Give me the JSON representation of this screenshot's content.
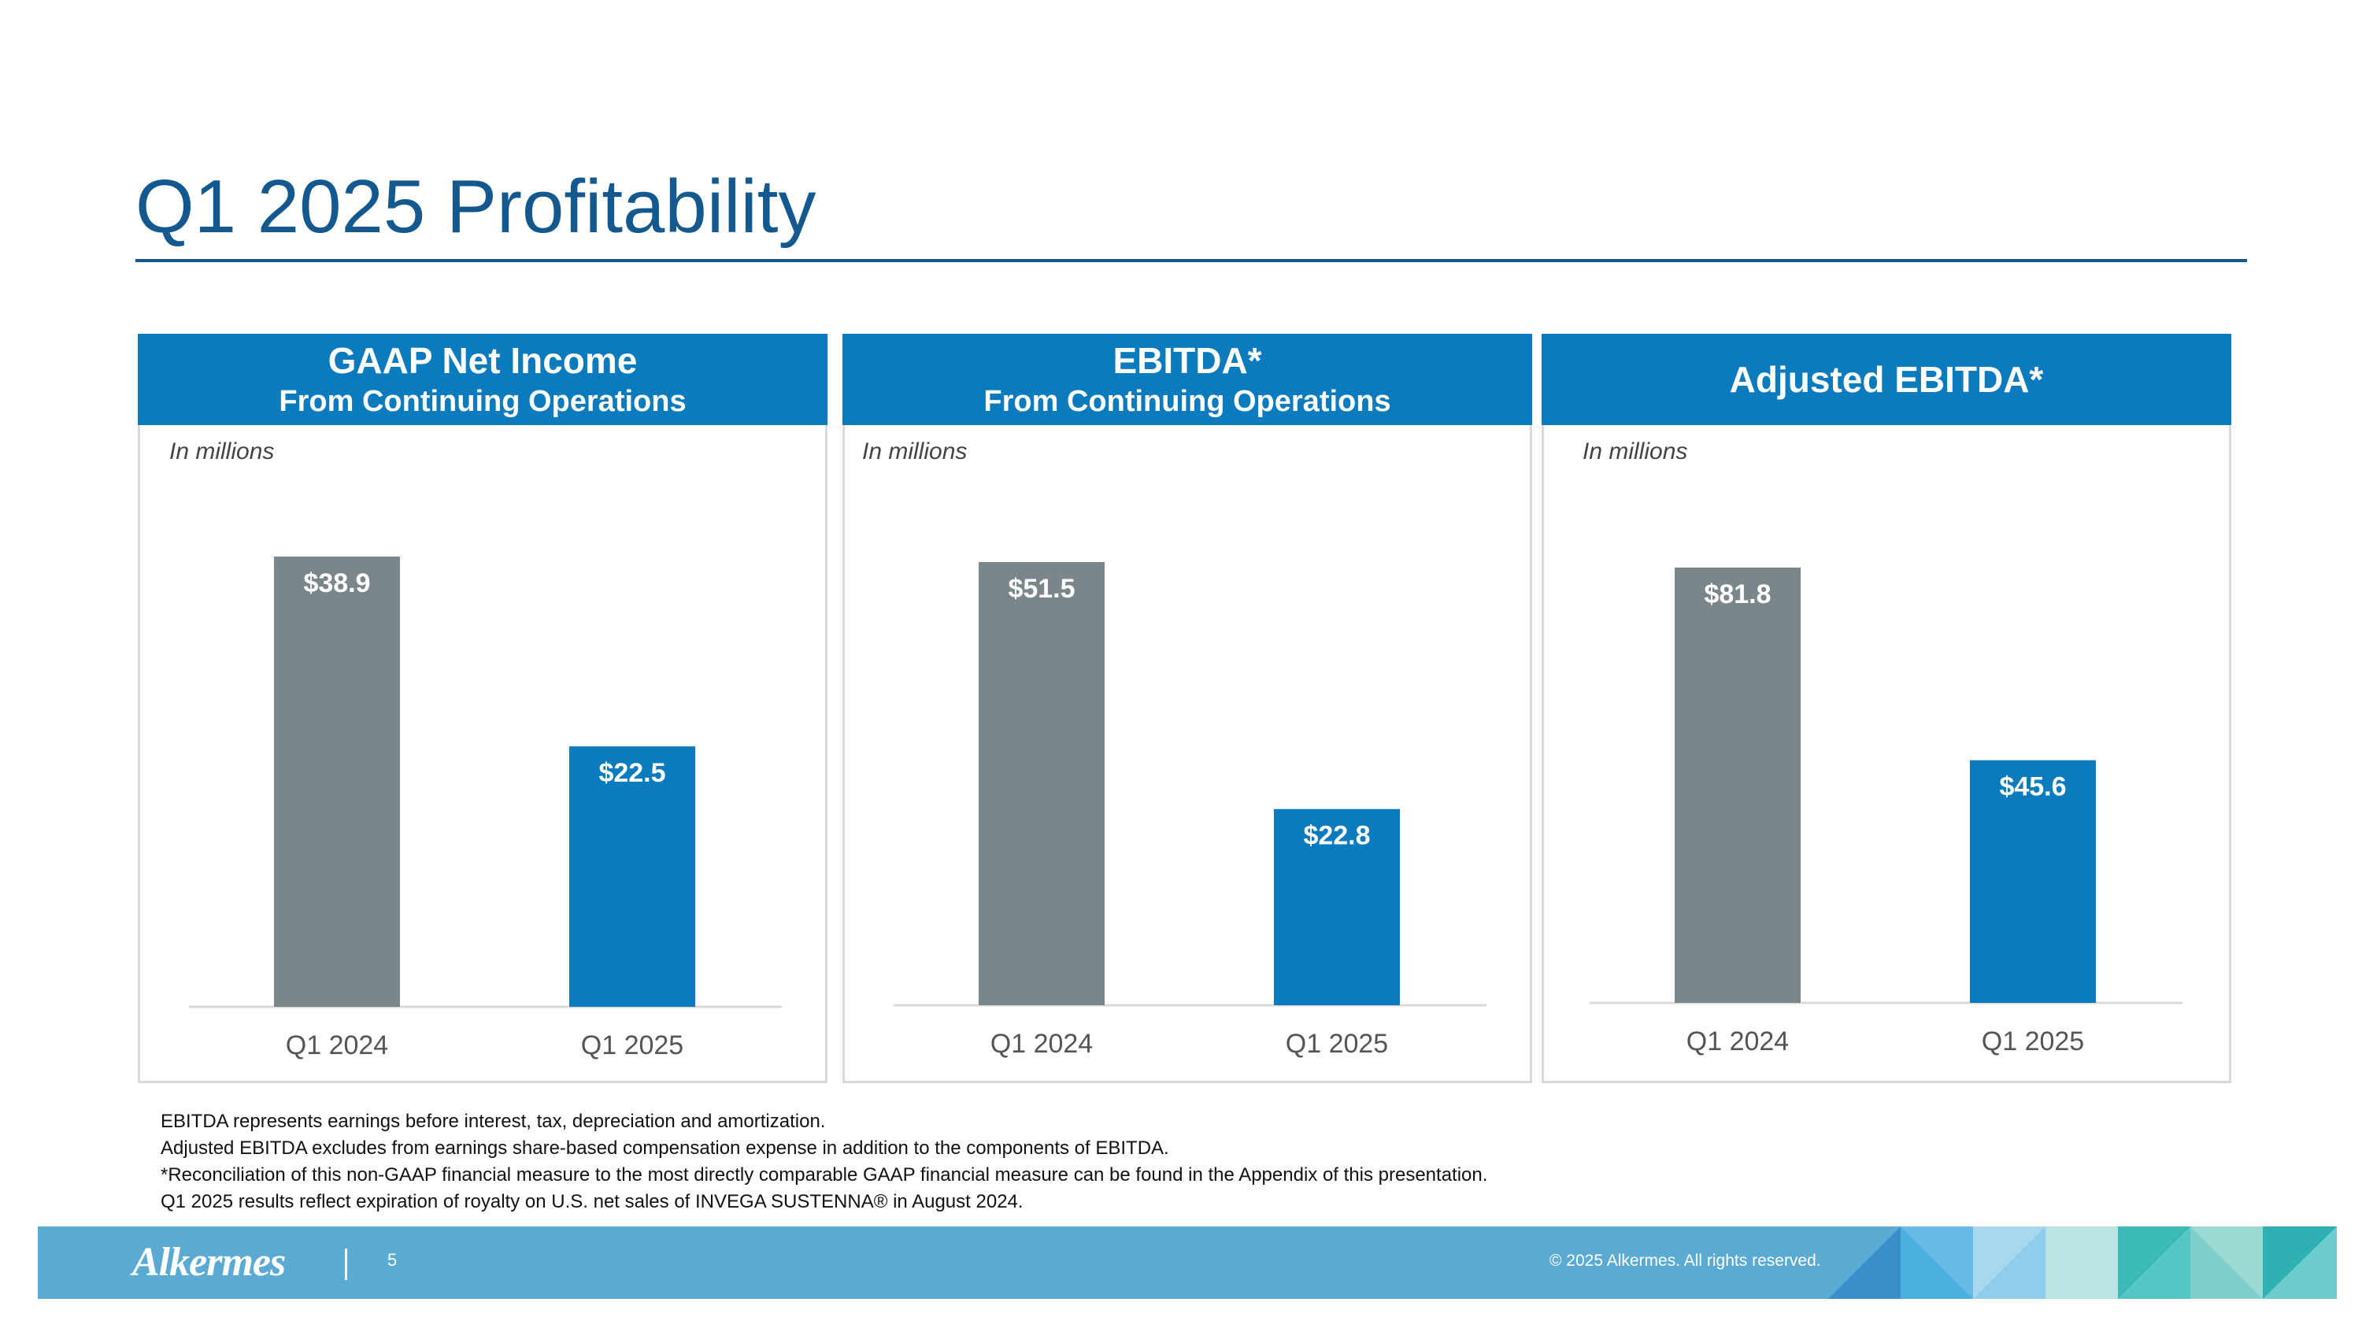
{
  "slide": {
    "title": "Q1 2025 Profitability"
  },
  "panels": [
    {
      "header_line1": "GAAP Net Income",
      "header_line2": "From Continuing Operations",
      "unit_note": "In millions"
    },
    {
      "header_line1": "EBITDA*",
      "header_line2": "From Continuing Operations",
      "unit_note": "In millions"
    },
    {
      "header_line1": "Adjusted EBITDA*",
      "header_line2": "",
      "unit_note": "In millions"
    }
  ],
  "chart_data": [
    {
      "type": "bar",
      "title": "GAAP Net Income From Continuing Operations",
      "categories": [
        "Q1 2024",
        "Q1 2025"
      ],
      "values": [
        38.9,
        22.5
      ],
      "labels": [
        "$38.9",
        "$22.5"
      ],
      "colors": [
        "#7b868b",
        "#0b7bbd"
      ],
      "ylim": [
        0,
        40
      ],
      "ylabel": "In millions"
    },
    {
      "type": "bar",
      "title": "EBITDA* From Continuing Operations",
      "categories": [
        "Q1 2024",
        "Q1 2025"
      ],
      "values": [
        51.5,
        22.8
      ],
      "labels": [
        "$51.5",
        "$22.8"
      ],
      "colors": [
        "#7b868b",
        "#0b7bbd"
      ],
      "ylim": [
        0,
        53
      ],
      "ylabel": "In millions"
    },
    {
      "type": "bar",
      "title": "Adjusted EBITDA*",
      "categories": [
        "Q1 2024",
        "Q1 2025"
      ],
      "values": [
        81.8,
        45.6
      ],
      "labels": [
        "$81.8",
        "$45.6"
      ],
      "colors": [
        "#7b868b",
        "#0b7bbd"
      ],
      "ylim": [
        0,
        84
      ],
      "ylabel": "In millions"
    }
  ],
  "footnotes": [
    "EBITDA represents earnings before interest, tax, depreciation and amortization.",
    "Adjusted EBITDA excludes from earnings share-based compensation expense in addition to the components of EBITDA.",
    "*Reconciliation of this non-GAAP financial measure to the most directly comparable GAAP financial measure can be found in the Appendix of this presentation.",
    "Q1 2025 results reflect expiration of royalty on U.S. net sales of INVEGA SUSTENNA® in August 2024."
  ],
  "footer": {
    "logo_text": "Alkermes",
    "page_number": "5",
    "copyright": "© 2025 Alkermes. All rights reserved."
  },
  "colors": {
    "title": "#13588f",
    "header_bg": "#0b7bbd",
    "bar_prior": "#7b868b",
    "bar_current": "#0b7bbd",
    "footer_bg": "#5aaad3"
  }
}
